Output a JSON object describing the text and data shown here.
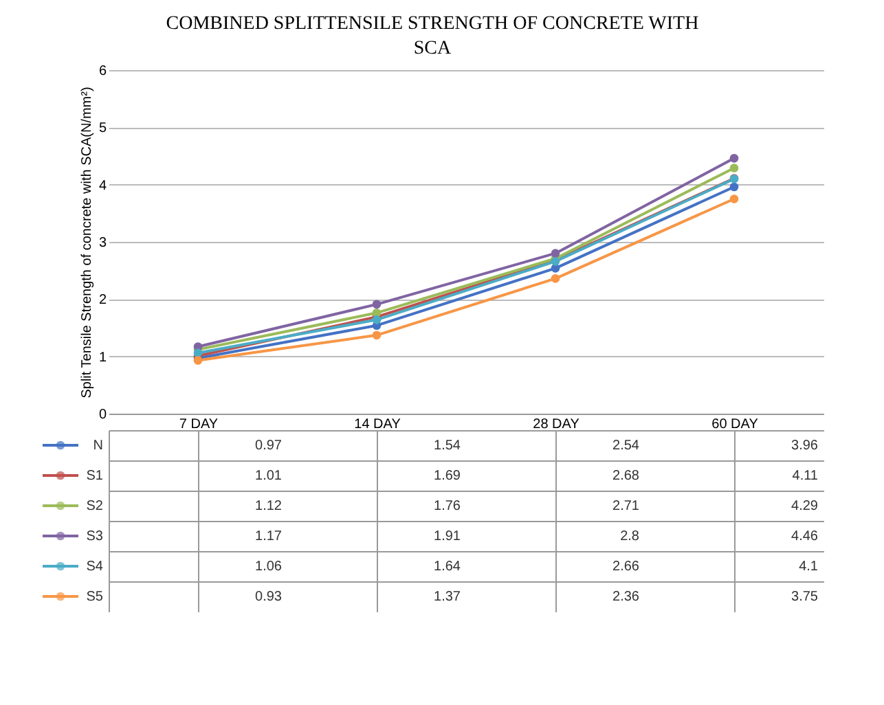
{
  "chart_data": {
    "type": "line",
    "title": "COMBINED SPLITTENSILE STRENGTH OF CONCRETE WITH SCA",
    "ylabel": "Split Tensile Strength of concrete with SCA(N/mm²)",
    "categories": [
      "7 DAY",
      "14 DAY",
      "28 DAY",
      "60 DAY"
    ],
    "series": [
      {
        "name": "N",
        "color": "#4472c4",
        "values": [
          0.97,
          1.54,
          2.54,
          3.96
        ]
      },
      {
        "name": "S1",
        "color": "#c0504d",
        "values": [
          1.01,
          1.69,
          2.68,
          4.11
        ]
      },
      {
        "name": "S2",
        "color": "#9bbb59",
        "values": [
          1.12,
          1.76,
          2.71,
          4.29
        ]
      },
      {
        "name": "S3",
        "color": "#8064a2",
        "values": [
          1.17,
          1.91,
          2.8,
          4.46
        ]
      },
      {
        "name": "S4",
        "color": "#4bacc6",
        "values": [
          1.06,
          1.64,
          2.66,
          4.1
        ]
      },
      {
        "name": "S5",
        "color": "#f79646",
        "values": [
          0.93,
          1.37,
          2.36,
          3.75
        ]
      }
    ],
    "ylim": [
      0,
      6
    ],
    "yticks": [
      0,
      1,
      2,
      3,
      4,
      5,
      6
    ],
    "grid": "y",
    "marker": "circle",
    "legend": "bottom",
    "data_labels": true
  }
}
